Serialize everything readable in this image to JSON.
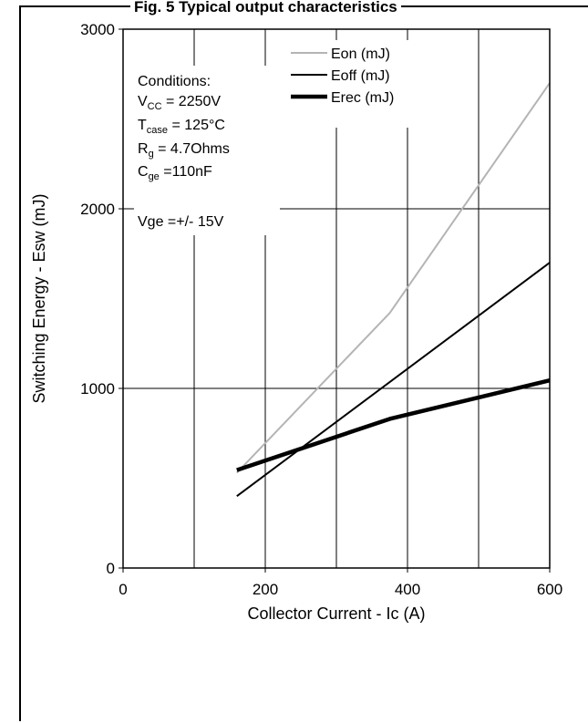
{
  "figure": {
    "title": "Fig. 5 Typical output characteristics"
  },
  "conditions": {
    "heading": "Conditions:",
    "vcc_main": "V",
    "vcc_sub": "CC",
    "vcc_value": " = 2250V",
    "tcase_main": "T",
    "tcase_sub": "case",
    "tcase_value": " = 125°C",
    "rg_main": "R",
    "rg_sub": "g",
    "rg_value": " = 4.7Ohms",
    "cge_main": "C",
    "cge_sub": "ge",
    "cge_value": " =110nF",
    "vge_line": "Vge =+/- 15V"
  },
  "chart_data": {
    "type": "line",
    "title": "",
    "xlabel": "Collector Current - Ic (A)",
    "ylabel": "Switching Energy - Esw (mJ)",
    "xlim": [
      0,
      600
    ],
    "ylim": [
      0,
      3000
    ],
    "xticks": [
      0,
      200,
      400,
      600
    ],
    "xtick_labels": [
      "0",
      "200",
      "400",
      "600"
    ],
    "yticks": [
      0,
      1000,
      2000,
      3000
    ],
    "ytick_labels": [
      "0",
      "1000",
      "2000",
      "3000"
    ],
    "grid": true,
    "legend_position": "top-right",
    "series": [
      {
        "name": "Eon (mJ)",
        "color": "#b4b4b4",
        "width": "thin",
        "x": [
          160,
          375,
          600
        ],
        "y": [
          530,
          1420,
          2700
        ]
      },
      {
        "name": "Eoff (mJ)",
        "color": "#000000",
        "width": "thin",
        "x": [
          160,
          600
        ],
        "y": [
          400,
          1700
        ]
      },
      {
        "name": "Erec (mJ)",
        "color": "#000000",
        "width": "thick",
        "x": [
          160,
          375,
          600
        ],
        "y": [
          545,
          830,
          1045
        ]
      }
    ]
  }
}
